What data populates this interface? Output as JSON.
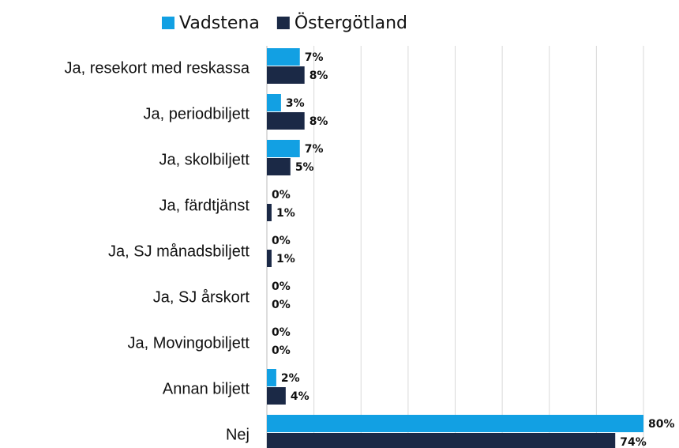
{
  "chart_data": {
    "type": "bar",
    "orientation": "horizontal",
    "categories": [
      "Ja, resekort med reskassa",
      "Ja, periodbiljett",
      "Ja, skolbiljett",
      "Ja, färdtjänst",
      "Ja, SJ månadsbiljett",
      "Ja, SJ årskort",
      "Ja, Movingobiljett",
      "Annan biljett",
      "Nej"
    ],
    "series": [
      {
        "name": "Vadstena",
        "color": "#12a0e3",
        "values": [
          7,
          3,
          7,
          0,
          0,
          0,
          0,
          2,
          80
        ],
        "value_labels": [
          "7%",
          "3%",
          "7%",
          "0%",
          "0%",
          "0%",
          "0%",
          "2%",
          "80%"
        ]
      },
      {
        "name": "Östergötland",
        "color": "#1b2946",
        "values": [
          8,
          8,
          5,
          1,
          1,
          0,
          0,
          4,
          74
        ],
        "value_labels": [
          "8%",
          "8%",
          "5%",
          "1%",
          "1%",
          "0%",
          "0%",
          "4%",
          "74%"
        ]
      }
    ],
    "xlim": [
      0,
      80
    ],
    "xticks": [
      0,
      10,
      20,
      30,
      40,
      50,
      60,
      70,
      80
    ],
    "grid": true,
    "legend": "top"
  }
}
